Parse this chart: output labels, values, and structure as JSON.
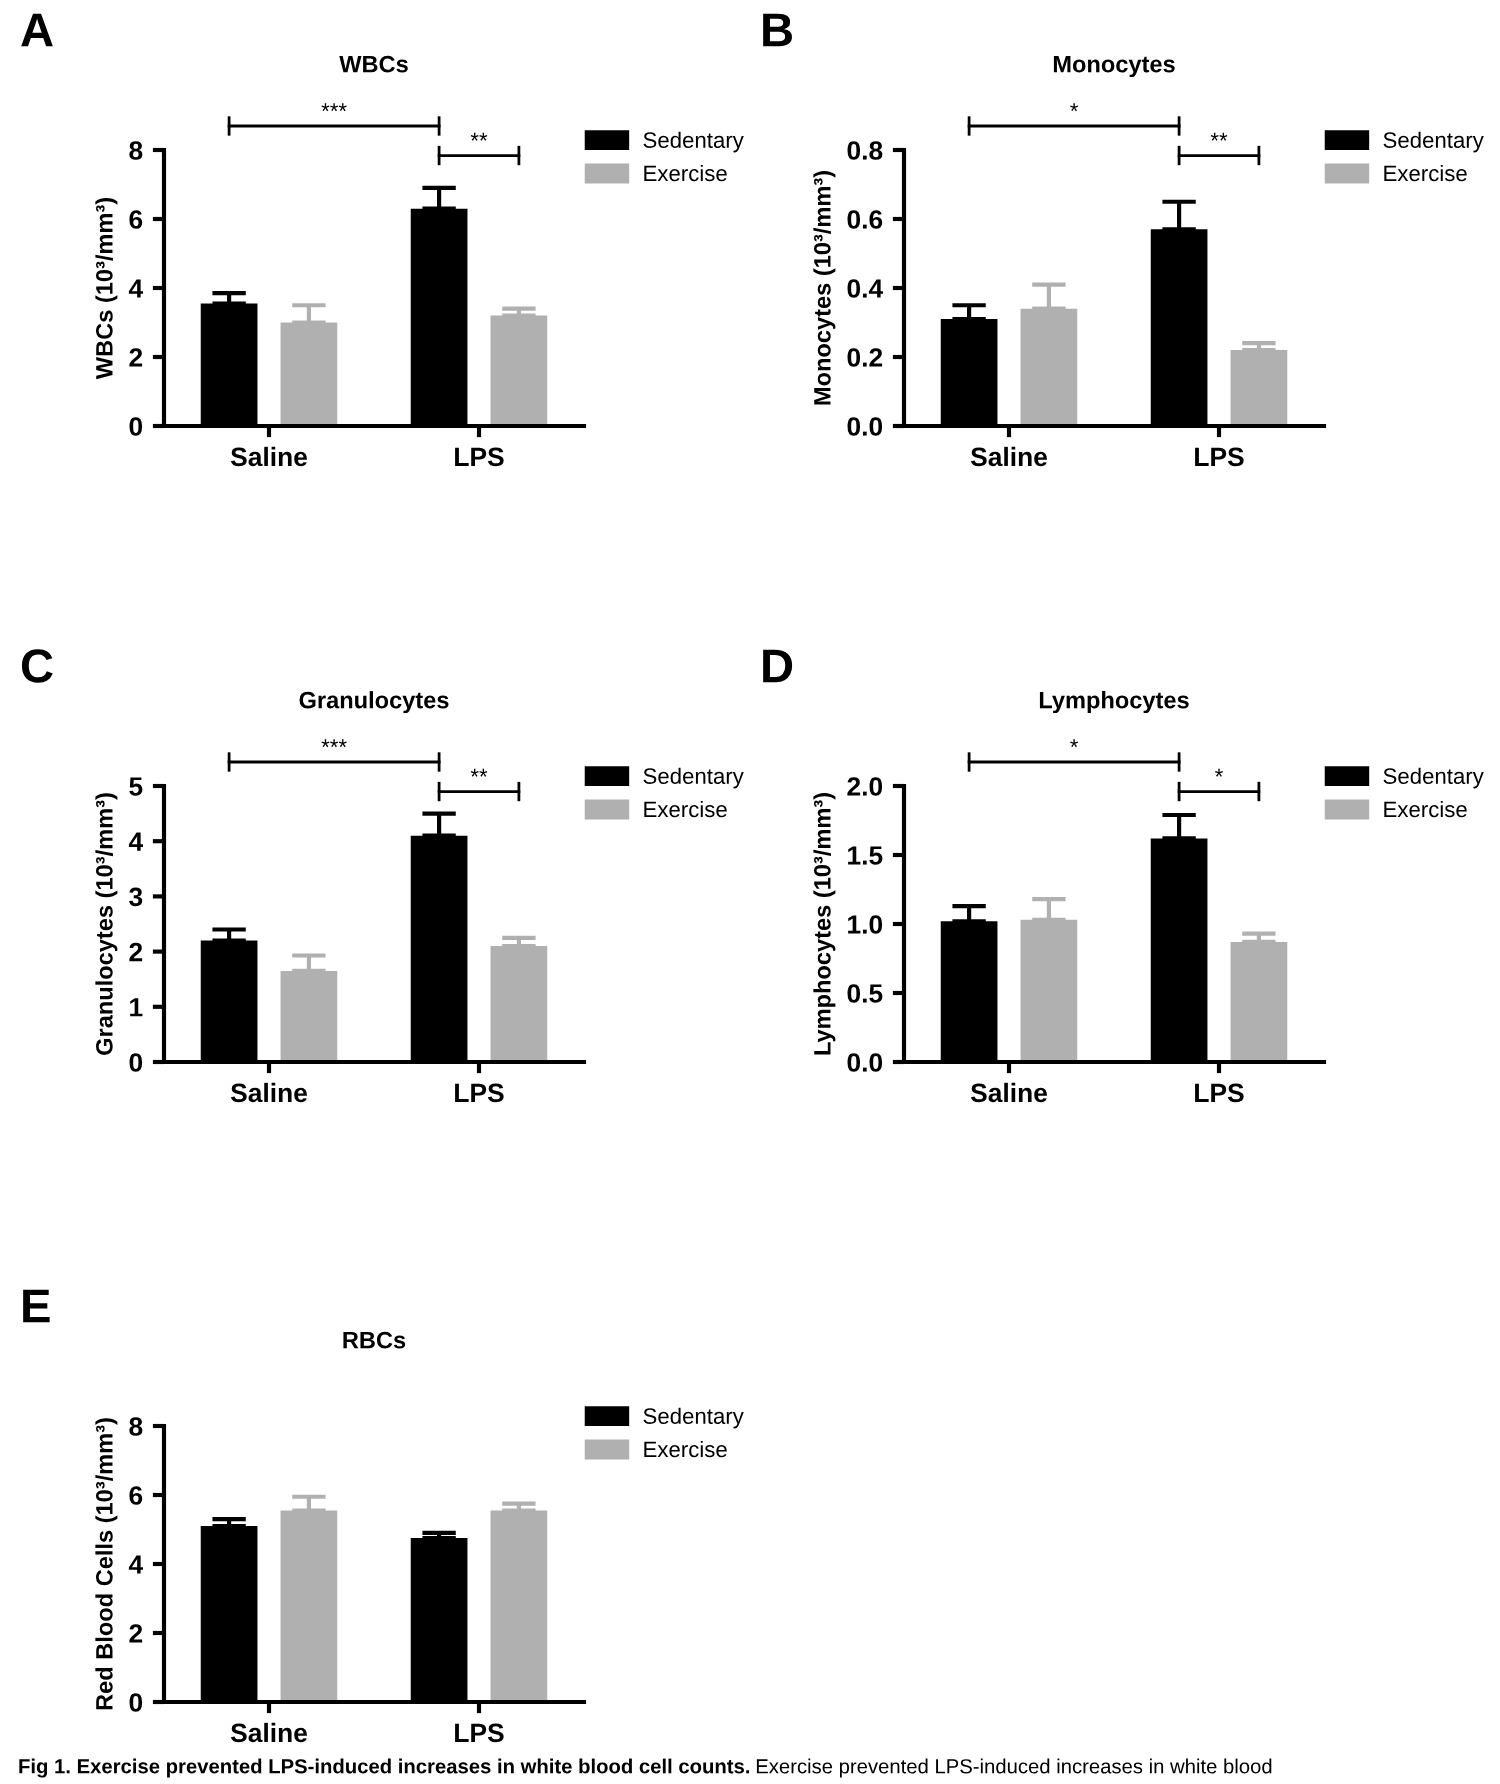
{
  "chart_data": [
    {
      "type": "bar",
      "title": "WBCs",
      "ylabel": "WBCs (10³/mm³)",
      "categories": [
        "Saline",
        "LPS"
      ],
      "ylim": [
        0,
        8
      ],
      "yticks": [
        0,
        2,
        4,
        6,
        8
      ],
      "legend": "top right",
      "annotations": [
        "A",
        "***",
        "**"
      ],
      "series": [
        {
          "name": "Sedentary",
          "color": "#000000",
          "values": [
            3.55,
            6.3
          ],
          "errors": [
            [
              3.55,
              3.85
            ],
            [
              6.3,
              6.9
            ]
          ]
        },
        {
          "name": "Exercise",
          "color": "#b0b0b0",
          "values": [
            3.0,
            3.2
          ],
          "errors": [
            [
              3.0,
              3.5
            ],
            [
              3.2,
              3.4
            ]
          ]
        }
      ]
    },
    {
      "type": "bar",
      "title": "Monocytes",
      "ylabel": "Monocytes (10³/mm³)",
      "categories": [
        "Saline",
        "LPS"
      ],
      "ylim": [
        0,
        0.8
      ],
      "yticks": [
        {
          "value": 0,
          "label": "0.0"
        },
        {
          "value": 0.2,
          "label": "0.2"
        },
        {
          "value": 0.4,
          "label": "0.4"
        },
        {
          "value": 0.6,
          "label": "0.6"
        },
        {
          "value": 0.8,
          "label": "0.8"
        }
      ],
      "legend": "top right",
      "annotations": [
        "B",
        "*",
        "**"
      ],
      "series": [
        {
          "name": "Sedentary",
          "color": "#000000",
          "values": [
            0.31,
            0.57
          ],
          "errors": [
            [
              0.31,
              0.35
            ],
            [
              0.57,
              0.65
            ]
          ]
        },
        {
          "name": "Exercise",
          "color": "#b0b0b0",
          "values": [
            0.34,
            0.22
          ],
          "errors": [
            [
              0.34,
              0.41
            ],
            [
              0.22,
              0.24
            ]
          ]
        }
      ]
    },
    {
      "type": "bar",
      "title": "Granulocytes",
      "ylabel": "Granulocytes (10³/mm³)",
      "categories": [
        "Saline",
        "LPS"
      ],
      "ylim": [
        0,
        5
      ],
      "yticks": [
        0,
        1,
        2,
        3,
        4,
        5
      ],
      "legend": "top right",
      "annotations": [
        "C",
        "***",
        "**"
      ],
      "series": [
        {
          "name": "Sedentary",
          "color": "#000000",
          "values": [
            2.2,
            4.1
          ],
          "errors": [
            [
              2.2,
              2.4
            ],
            [
              4.1,
              4.5
            ]
          ]
        },
        {
          "name": "Exercise",
          "color": "#b0b0b0",
          "values": [
            1.65,
            2.1
          ],
          "errors": [
            [
              1.65,
              1.93
            ],
            [
              2.1,
              2.25
            ]
          ]
        }
      ]
    },
    {
      "type": "bar",
      "title": "Lymphocytes",
      "ylabel": "Lymphocytes (10³/mm³)",
      "categories": [
        "Saline",
        "LPS"
      ],
      "ylim": [
        0,
        2
      ],
      "yticks": [
        {
          "value": 0,
          "label": "0.0"
        },
        {
          "value": 0.5,
          "label": "0.5"
        },
        {
          "value": 1,
          "label": "1.0"
        },
        {
          "value": 1.5,
          "label": "1.5"
        },
        {
          "value": 2,
          "label": "2.0"
        }
      ],
      "legend": "top right",
      "annotations": [
        "D",
        "*",
        "*"
      ],
      "series": [
        {
          "name": "Sedentary",
          "color": "#000000",
          "values": [
            1.02,
            1.62
          ],
          "errors": [
            [
              1.02,
              1.13
            ],
            [
              1.62,
              1.79
            ]
          ]
        },
        {
          "name": "Exercise",
          "color": "#b0b0b0",
          "values": [
            1.03,
            0.87
          ],
          "errors": [
            [
              1.03,
              1.18
            ],
            [
              0.87,
              0.93
            ]
          ]
        }
      ]
    },
    {
      "type": "bar",
      "title": "RBCs",
      "ylabel": "Red Blood Cells (10³/mm³)",
      "categories": [
        "Saline",
        "LPS"
      ],
      "ylim": [
        0,
        8
      ],
      "yticks": [
        0,
        2,
        4,
        6,
        8
      ],
      "legend": "top right",
      "annotations": [
        "E",
        "Fig 1. Exercise prevented LPS-induced increases in white blood cell counts.",
        "Exercise prevented LPS-induced increases in white blood"
      ],
      "series": [
        {
          "name": "Sedentary",
          "color": "#000000",
          "values": [
            5.1,
            4.75
          ],
          "errors": [
            [
              5.1,
              5.3
            ],
            [
              4.75,
              4.9
            ]
          ]
        },
        {
          "name": "Exercise",
          "color": "#b0b0b0",
          "values": [
            5.55,
            5.55
          ],
          "errors": [
            [
              5.55,
              5.95
            ],
            [
              5.55,
              5.75
            ]
          ]
        }
      ]
    }
  ]
}
